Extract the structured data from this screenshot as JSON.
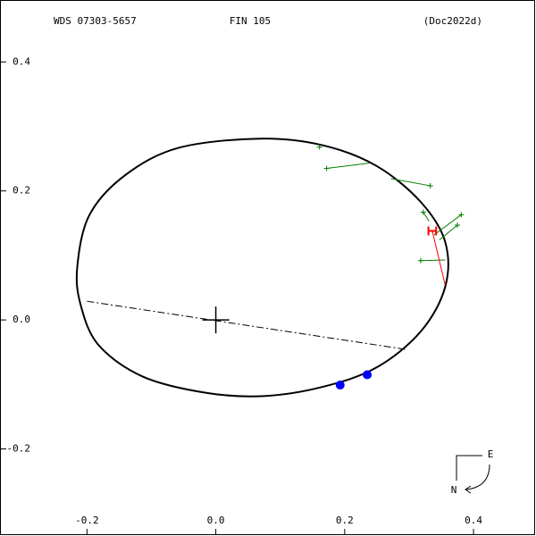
{
  "chart_data": {
    "type": "orbit",
    "header": [
      "WDS 07303-5657",
      "FIN 105",
      "(Doc2022d)"
    ],
    "compass": [
      "E",
      "N"
    ],
    "xlim": [
      -0.335,
      0.497
    ],
    "ylim": [
      -0.335,
      0.496
    ],
    "xticks": [
      -0.2,
      {
        "value": 0,
        "label": "0.0"
      },
      0.2,
      0.4
    ],
    "yticks": [
      -0.2,
      {
        "value": 0,
        "label": "0.0"
      },
      0.2,
      0.4
    ],
    "orbit": {
      "color": "#000000",
      "x": [
        -0.215,
        -0.196,
        -0.14,
        -0.057,
        0.068,
        0.165,
        0.249,
        0.318,
        0.356,
        0.356,
        0.318,
        0.249,
        0.165,
        0.075,
        -0.015,
        -0.113,
        -0.182,
        -0.21
      ],
      "y": [
        0.083,
        0.163,
        0.225,
        0.267,
        0.281,
        0.271,
        0.239,
        0.183,
        0.121,
        0.051,
        -0.018,
        -0.074,
        -0.104,
        -0.118,
        -0.113,
        -0.088,
        -0.039,
        0.024
      ]
    },
    "node_line": {
      "color": "#000000",
      "x": [
        -0.2,
        0.297
      ],
      "y": [
        0.029,
        -0.046
      ]
    },
    "measures": {
      "color": "#008000",
      "items": [
        {
          "x": [
            0.161,
            0.16
          ],
          "y": [
            0.268,
            0.269
          ]
        },
        {
          "x": [
            0.172,
            0.238
          ],
          "y": [
            0.235,
            0.243
          ]
        },
        {
          "x": [
            0.333,
            0.272
          ],
          "y": [
            0.208,
            0.219
          ]
        },
        {
          "x": [
            0.322,
            0.331
          ],
          "y": [
            0.167,
            0.153
          ]
        },
        {
          "x": [
            0.381,
            0.339
          ],
          "y": [
            0.163,
            0.132
          ]
        },
        {
          "x": [
            0.375,
            0.347
          ],
          "y": [
            0.147,
            0.124
          ]
        },
        {
          "x": [
            0.318,
            0.356
          ],
          "y": [
            0.092,
            0.093
          ]
        }
      ]
    },
    "latest": {
      "color": "#ff0000",
      "x": [
        0.336,
        0.356
      ],
      "y": [
        0.138,
        0.054
      ],
      "error": 0.006
    },
    "points": {
      "color": "#0000ff",
      "x": [
        0.193,
        0.235
      ],
      "y": [
        -0.101,
        -0.085
      ]
    }
  }
}
